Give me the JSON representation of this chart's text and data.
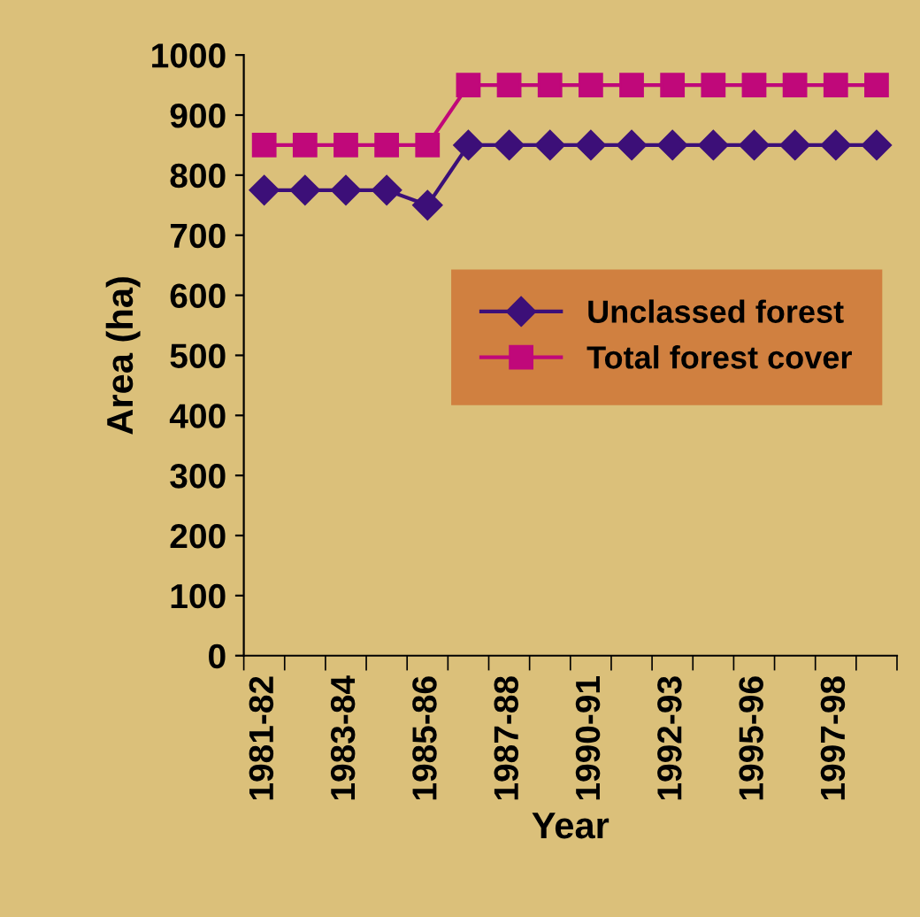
{
  "chart_data": {
    "type": "line",
    "xlabel": "Year",
    "ylabel": "Area (ha)",
    "categories": [
      "1981-82",
      null,
      "1983-84",
      null,
      "1985-86",
      null,
      "1987-88",
      null,
      "1990-91",
      null,
      "1992-93",
      null,
      "1995-96",
      null,
      "1997-98",
      null
    ],
    "series": [
      {
        "name": "Unclassed forest",
        "color": "#3c0f78",
        "marker": "diamond",
        "values": [
          775,
          775,
          775,
          775,
          750,
          850,
          850,
          850,
          850,
          850,
          850,
          850,
          850,
          850,
          850,
          850
        ]
      },
      {
        "name": "Total forest cover",
        "color": "#c0087a",
        "marker": "square",
        "values": [
          850,
          850,
          850,
          850,
          850,
          950,
          950,
          950,
          950,
          950,
          950,
          950,
          950,
          950,
          950,
          950
        ]
      }
    ],
    "ylim": [
      0,
      1000
    ],
    "yticks": [
      0,
      100,
      200,
      300,
      400,
      500,
      600,
      700,
      800,
      900,
      1000
    ],
    "grid": false,
    "legend": "center right"
  }
}
